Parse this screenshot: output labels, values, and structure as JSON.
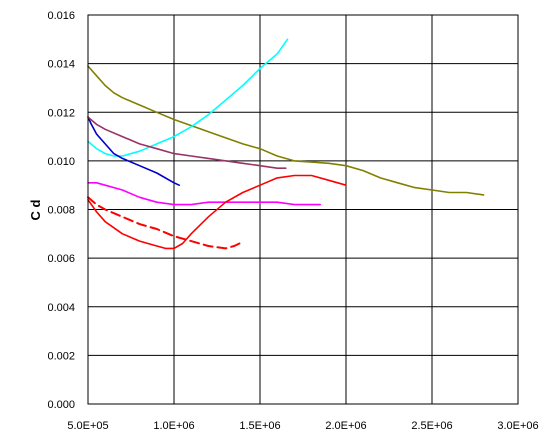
{
  "chart_data": {
    "type": "line",
    "title": "",
    "xlabel": "",
    "ylabel": "C d",
    "xlim": [
      500000,
      3000000
    ],
    "ylim": [
      0,
      0.016
    ],
    "grid": true,
    "legend": "none",
    "x_ticks": [
      500000,
      1000000,
      1500000,
      2000000,
      2500000,
      3000000
    ],
    "x_tick_labels": [
      "5.0E+05",
      "1.0E+06",
      "1.5E+06",
      "2.0E+06",
      "2.5E+06",
      "3.0E+06"
    ],
    "y_ticks": [
      0,
      0.002,
      0.004,
      0.006,
      0.008,
      0.01,
      0.012,
      0.014,
      0.016
    ],
    "y_tick_labels": [
      "0.000",
      "0.002",
      "0.004",
      "0.006",
      "0.008",
      "0.010",
      "0.012",
      "0.014",
      "0.016"
    ],
    "series": [
      {
        "color": "#808000",
        "dash": false,
        "points": [
          [
            500000,
            0.0139
          ],
          [
            550000,
            0.0135
          ],
          [
            600000,
            0.0131
          ],
          [
            650000,
            0.0128
          ],
          [
            700000,
            0.0126
          ],
          [
            800000,
            0.0123
          ],
          [
            900000,
            0.012
          ],
          [
            1000000,
            0.0117
          ],
          [
            1200000,
            0.0112
          ],
          [
            1400000,
            0.0107
          ],
          [
            1500000,
            0.0105
          ],
          [
            1600000,
            0.0102
          ],
          [
            1700000,
            0.01
          ],
          [
            1800000,
            0.00995
          ],
          [
            1900000,
            0.0099
          ],
          [
            2000000,
            0.0098
          ],
          [
            2100000,
            0.0096
          ],
          [
            2200000,
            0.0093
          ],
          [
            2300000,
            0.0091
          ],
          [
            2400000,
            0.0089
          ],
          [
            2500000,
            0.0088
          ],
          [
            2600000,
            0.0087
          ],
          [
            2700000,
            0.0087
          ],
          [
            2800000,
            0.0086
          ]
        ]
      },
      {
        "color": "#00FFFF",
        "dash": false,
        "points": [
          [
            500000,
            0.0108
          ],
          [
            550000,
            0.0105
          ],
          [
            600000,
            0.0103
          ],
          [
            650000,
            0.0102
          ],
          [
            700000,
            0.0102
          ],
          [
            800000,
            0.0104
          ],
          [
            900000,
            0.0107
          ],
          [
            1000000,
            0.011
          ],
          [
            1100000,
            0.0114
          ],
          [
            1200000,
            0.0119
          ],
          [
            1300000,
            0.0125
          ],
          [
            1400000,
            0.0131
          ],
          [
            1500000,
            0.0138
          ],
          [
            1600000,
            0.0144
          ],
          [
            1660000,
            0.015
          ]
        ]
      },
      {
        "color": "#0000CC",
        "dash": false,
        "points": [
          [
            500000,
            0.0118
          ],
          [
            520000,
            0.0115
          ],
          [
            550000,
            0.0111
          ],
          [
            600000,
            0.0107
          ],
          [
            650000,
            0.0103
          ],
          [
            700000,
            0.0101
          ],
          [
            800000,
            0.0098
          ],
          [
            900000,
            0.0095
          ],
          [
            1000000,
            0.0091
          ],
          [
            1030000,
            0.009
          ]
        ]
      },
      {
        "color": "#993366",
        "dash": false,
        "points": [
          [
            500000,
            0.0118
          ],
          [
            550000,
            0.0115
          ],
          [
            600000,
            0.0113
          ],
          [
            700000,
            0.011
          ],
          [
            800000,
            0.0107
          ],
          [
            900000,
            0.0105
          ],
          [
            1000000,
            0.0103
          ],
          [
            1100000,
            0.0102
          ],
          [
            1200000,
            0.0101
          ],
          [
            1400000,
            0.0099
          ],
          [
            1500000,
            0.0098
          ],
          [
            1600000,
            0.0097
          ],
          [
            1650000,
            0.0097
          ]
        ]
      },
      {
        "color": "#FF00FF",
        "dash": false,
        "points": [
          [
            500000,
            0.0091
          ],
          [
            550000,
            0.0091
          ],
          [
            600000,
            0.009
          ],
          [
            700000,
            0.0088
          ],
          [
            800000,
            0.0085
          ],
          [
            900000,
            0.0083
          ],
          [
            1000000,
            0.0082
          ],
          [
            1100000,
            0.0082
          ],
          [
            1200000,
            0.0083
          ],
          [
            1300000,
            0.0083
          ],
          [
            1500000,
            0.0083
          ],
          [
            1600000,
            0.0083
          ],
          [
            1700000,
            0.0082
          ],
          [
            1850000,
            0.0082
          ]
        ]
      },
      {
        "color": "#FF0000",
        "dash": false,
        "points": [
          [
            500000,
            0.0084
          ],
          [
            550000,
            0.0079
          ],
          [
            600000,
            0.0075
          ],
          [
            700000,
            0.007
          ],
          [
            800000,
            0.0067
          ],
          [
            900000,
            0.0065
          ],
          [
            950000,
            0.0064
          ],
          [
            1000000,
            0.0064
          ],
          [
            1050000,
            0.0066
          ],
          [
            1100000,
            0.007
          ],
          [
            1200000,
            0.0077
          ],
          [
            1300000,
            0.0083
          ],
          [
            1400000,
            0.0087
          ],
          [
            1500000,
            0.009
          ],
          [
            1600000,
            0.0093
          ],
          [
            1700000,
            0.0094
          ],
          [
            1800000,
            0.0094
          ],
          [
            1900000,
            0.0092
          ],
          [
            2000000,
            0.009
          ]
        ]
      },
      {
        "color": "#FF0000",
        "dash": true,
        "points": [
          [
            500000,
            0.0085
          ],
          [
            550000,
            0.0082
          ],
          [
            600000,
            0.008
          ],
          [
            700000,
            0.0077
          ],
          [
            800000,
            0.0074
          ],
          [
            900000,
            0.0072
          ],
          [
            1000000,
            0.0069
          ],
          [
            1100000,
            0.0067
          ],
          [
            1200000,
            0.0065
          ],
          [
            1300000,
            0.0064
          ],
          [
            1350000,
            0.0065
          ],
          [
            1380000,
            0.0066
          ]
        ]
      }
    ]
  }
}
